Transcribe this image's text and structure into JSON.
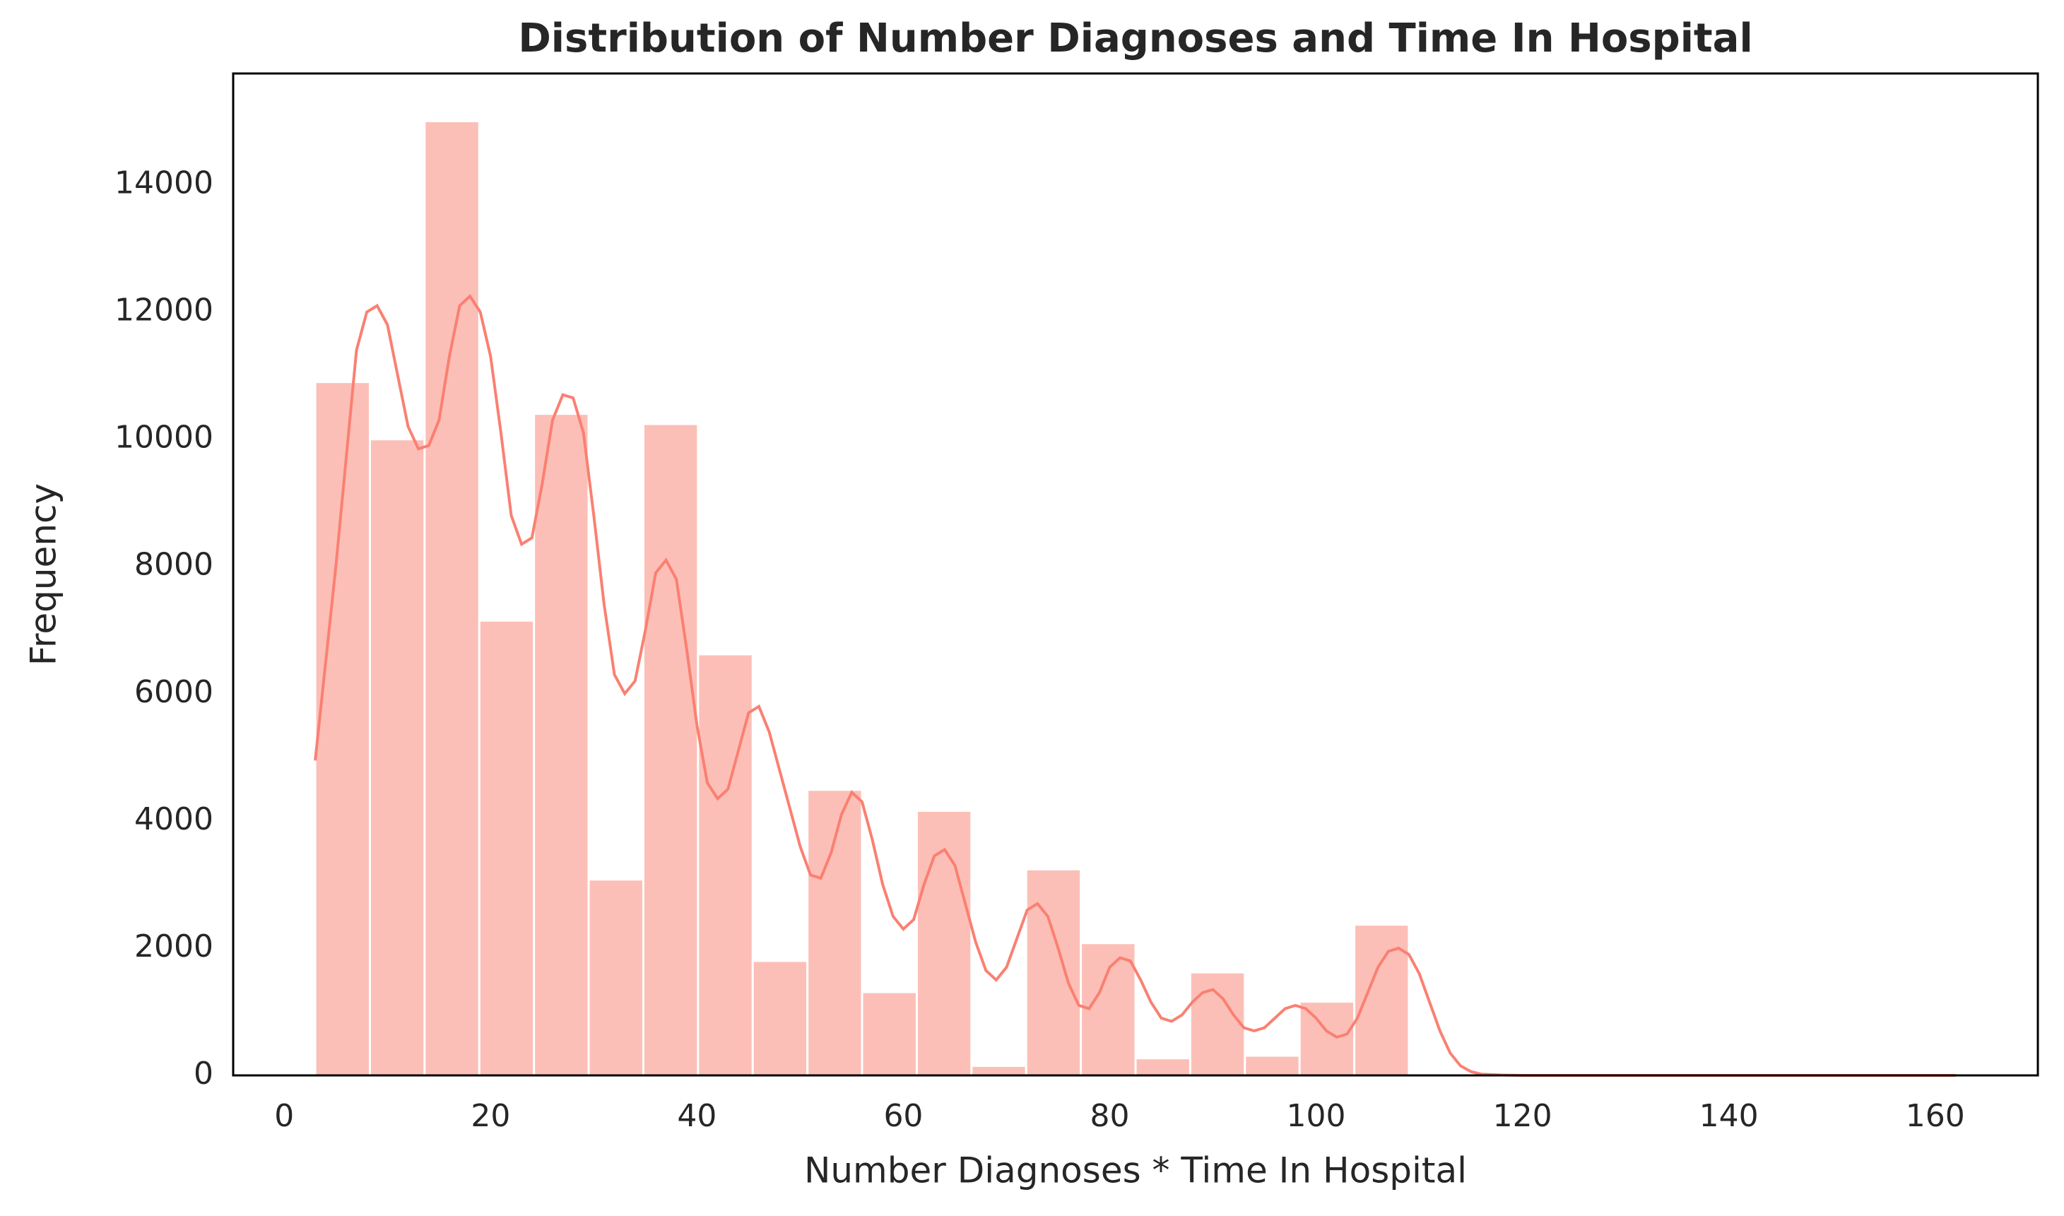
{
  "chart_data": {
    "type": "histogram",
    "title": "Distribution of Number Diagnoses and Time In Hospital",
    "x_label": "Number Diagnoses * Time In Hospital",
    "y_label": "Frequency",
    "color": "#fa8072",
    "bins": [
      3,
      8.3,
      13.6,
      18.9,
      24.2,
      29.5,
      34.8,
      40.1,
      45.4,
      50.7,
      56,
      61.3,
      66.6,
      71.9,
      77.2,
      82.5,
      87.8,
      93.1,
      98.4,
      103.7,
      109,
      114.3,
      119.6,
      124.9,
      130.2,
      135.5,
      140.8,
      146.1,
      151.4,
      156.7,
      162
    ],
    "values": [
      10900,
      10000,
      15000,
      7150,
      10400,
      3080,
      10240,
      6620,
      1800,
      4490,
      1310,
      4160,
      150,
      3240,
      2080,
      270,
      1620,
      310,
      1160,
      2370,
      0,
      0,
      0,
      0,
      0,
      0,
      0,
      0,
      0,
      0
    ],
    "kde": {
      "x": [
        3,
        5,
        7,
        8,
        9,
        10,
        11,
        12,
        13,
        14,
        15,
        16,
        17,
        18,
        19,
        20,
        21,
        22,
        23,
        24,
        25,
        26,
        27,
        28,
        29,
        30,
        31,
        32,
        33,
        34,
        35,
        36,
        37,
        38,
        39,
        40,
        41,
        42,
        43,
        44,
        45,
        46,
        47,
        48,
        49,
        50,
        51,
        52,
        53,
        54,
        55,
        56,
        57,
        58,
        59,
        60,
        61,
        62,
        63,
        64,
        65,
        66,
        67,
        68,
        69,
        70,
        71,
        72,
        73,
        74,
        75,
        76,
        77,
        78,
        79,
        80,
        81,
        82,
        83,
        84,
        85,
        86,
        87,
        88,
        89,
        90,
        91,
        92,
        93,
        94,
        95,
        96,
        97,
        98,
        99,
        100,
        101,
        102,
        103,
        104,
        105,
        106,
        107,
        108,
        109,
        110,
        111,
        112,
        113,
        114,
        115,
        116,
        118,
        120,
        140,
        162
      ],
      "values": [
        4950,
        8000,
        11400,
        12000,
        12100,
        11800,
        11000,
        10200,
        9850,
        9900,
        10300,
        11300,
        12100,
        12250,
        12000,
        11300,
        10100,
        8800,
        8350,
        8450,
        9300,
        10300,
        10700,
        10650,
        10100,
        8800,
        7400,
        6300,
        6000,
        6200,
        7000,
        7900,
        8100,
        7800,
        6700,
        5500,
        4600,
        4350,
        4500,
        5100,
        5700,
        5800,
        5400,
        4800,
        4200,
        3600,
        3150,
        3100,
        3500,
        4100,
        4450,
        4300,
        3700,
        3000,
        2500,
        2300,
        2450,
        3000,
        3450,
        3550,
        3300,
        2700,
        2100,
        1650,
        1500,
        1700,
        2150,
        2600,
        2700,
        2500,
        2000,
        1450,
        1100,
        1050,
        1300,
        1700,
        1850,
        1800,
        1500,
        1150,
        900,
        850,
        950,
        1150,
        1300,
        1350,
        1200,
        950,
        750,
        700,
        750,
        900,
        1050,
        1100,
        1050,
        900,
        700,
        600,
        650,
        900,
        1300,
        1700,
        1950,
        2000,
        1900,
        1600,
        1150,
        700,
        350,
        150,
        60,
        20,
        5,
        0,
        0,
        0
      ]
    },
    "xlim": [
      -4.95,
      169.95
    ],
    "ylim": [
      0,
      15750
    ],
    "xticks": [
      0,
      20,
      40,
      60,
      80,
      100,
      120,
      140,
      160
    ],
    "yticks": [
      0,
      2000,
      4000,
      6000,
      8000,
      10000,
      12000,
      14000
    ],
    "grid": false
  }
}
